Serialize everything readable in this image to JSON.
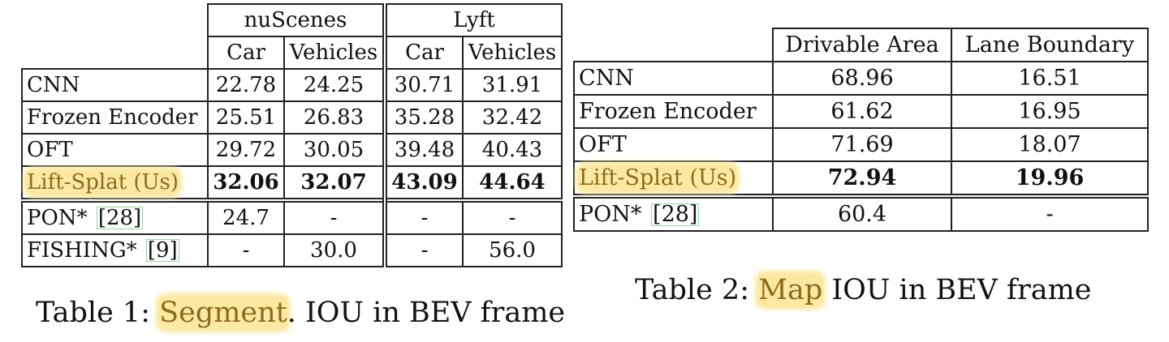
{
  "table1": {
    "group_headers": [
      "nuScenes",
      "Lyft"
    ],
    "sub_headers": [
      "Car",
      "Vehicles",
      "Car",
      "Vehicles"
    ],
    "rows": [
      {
        "label": "CNN",
        "cite": "",
        "values": [
          "22.78",
          "24.25",
          "30.71",
          "31.91"
        ]
      },
      {
        "label": "Frozen Encoder",
        "cite": "",
        "values": [
          "25.51",
          "26.83",
          "35.28",
          "32.42"
        ]
      },
      {
        "label": "OFT",
        "cite": "",
        "values": [
          "29.72",
          "30.05",
          "39.48",
          "40.43"
        ]
      },
      {
        "label": "Lift-Splat (Us)",
        "cite": "",
        "values": [
          "32.06",
          "32.07",
          "43.09",
          "44.64"
        ]
      },
      {
        "label": "PON*",
        "cite": "[28]",
        "values": [
          "24.7",
          "-",
          "-",
          "-"
        ]
      },
      {
        "label": "FISHING*",
        "cite": "[9]",
        "values": [
          "-",
          "30.0",
          "-",
          "56.0"
        ]
      }
    ]
  },
  "table2": {
    "headers": [
      "Drivable Area",
      "Lane Boundary"
    ],
    "rows": [
      {
        "label": "CNN",
        "cite": "",
        "values": [
          "68.96",
          "16.51"
        ]
      },
      {
        "label": "Frozen Encoder",
        "cite": "",
        "values": [
          "61.62",
          "16.95"
        ]
      },
      {
        "label": "OFT",
        "cite": "",
        "values": [
          "71.69",
          "18.07"
        ]
      },
      {
        "label": "Lift-Splat (Us)",
        "cite": "",
        "values": [
          "72.94",
          "19.96"
        ]
      },
      {
        "label": "PON*",
        "cite": "[28]",
        "values": [
          "60.4",
          "-"
        ]
      }
    ]
  },
  "caption1": {
    "prefix": "Table 1: ",
    "highlight": "Segment",
    "suffix": ". IOU in BEV frame"
  },
  "caption2": {
    "prefix": "Table 2: ",
    "highlight": "Map",
    "suffix": " IOU in BEV frame"
  },
  "colors": {
    "highlight_bg": "#fbe9a2",
    "highlight_text": "#8d6b1b",
    "cite_box": "#9fd3a4"
  }
}
